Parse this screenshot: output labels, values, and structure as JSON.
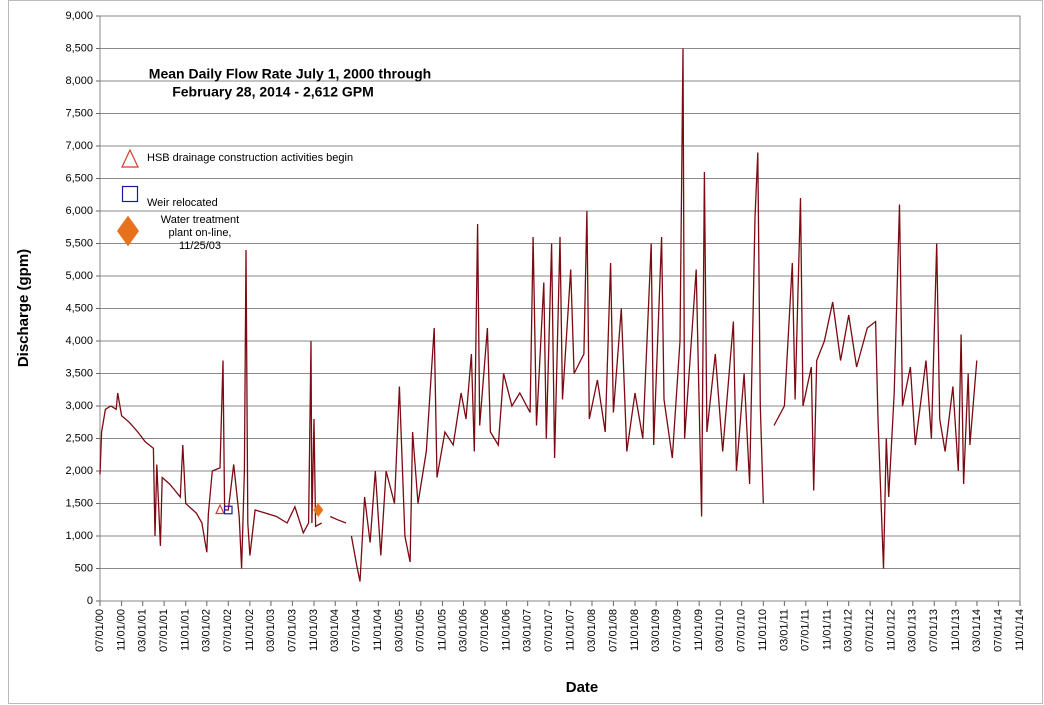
{
  "chart_data": {
    "type": "line",
    "title_lines": [
      "Mean Daily Flow Rate July 1, 2000 through",
      "February 28, 2014 - 2,612 GPM"
    ],
    "title_color": "#7b1c24",
    "x_label": "Date",
    "y_label": "Discharge (gpm)",
    "color": "#7b0a12",
    "xlim": [
      "2000-07-01",
      "2014-11-01"
    ],
    "ylim": [
      0,
      9000
    ],
    "yticks": [
      0,
      500,
      {
        "value": 1000,
        "label": "1,000"
      },
      {
        "value": 1500,
        "label": "1,500"
      },
      {
        "value": 2000,
        "label": "2,000"
      },
      {
        "value": 2500,
        "label": "2,500"
      },
      {
        "value": 3000,
        "label": "3,000"
      },
      {
        "value": 3500,
        "label": "3,500"
      },
      {
        "value": 4000,
        "label": "4,000"
      },
      {
        "value": 4500,
        "label": "4,500"
      },
      {
        "value": 5000,
        "label": "5,000"
      },
      {
        "value": 5500,
        "label": "5,500"
      },
      {
        "value": 6000,
        "label": "6,000"
      },
      {
        "value": 6500,
        "label": "6,500"
      },
      {
        "value": 7000,
        "label": "7,000"
      },
      {
        "value": 7500,
        "label": "7,500"
      },
      {
        "value": 8000,
        "label": "8,000"
      },
      {
        "value": 8500,
        "label": "8,500"
      },
      {
        "value": 9000,
        "label": "9,000"
      }
    ],
    "xticks": [
      {
        "value": "2000-07-01",
        "label": "07/01/00"
      },
      {
        "value": "2000-11-01",
        "label": "11/01/00"
      },
      {
        "value": "2001-03-01",
        "label": "03/01/01"
      },
      {
        "value": "2001-07-01",
        "label": "07/01/01"
      },
      {
        "value": "2001-11-01",
        "label": "11/01/01"
      },
      {
        "value": "2002-03-01",
        "label": "03/01/02"
      },
      {
        "value": "2002-07-01",
        "label": "07/01/02"
      },
      {
        "value": "2002-11-01",
        "label": "11/01/02"
      },
      {
        "value": "2003-03-01",
        "label": "03/01/03"
      },
      {
        "value": "2003-07-01",
        "label": "07/01/03"
      },
      {
        "value": "2003-11-01",
        "label": "11/01/03"
      },
      {
        "value": "2004-03-01",
        "label": "03/01/04"
      },
      {
        "value": "2004-07-01",
        "label": "07/01/04"
      },
      {
        "value": "2004-11-01",
        "label": "11/01/04"
      },
      {
        "value": "2005-03-01",
        "label": "03/01/05"
      },
      {
        "value": "2005-07-01",
        "label": "07/01/05"
      },
      {
        "value": "2005-11-01",
        "label": "11/01/05"
      },
      {
        "value": "2006-03-01",
        "label": "03/01/06"
      },
      {
        "value": "2006-07-01",
        "label": "07/01/06"
      },
      {
        "value": "2006-11-01",
        "label": "11/01/06"
      },
      {
        "value": "2007-03-01",
        "label": "03/01/07"
      },
      {
        "value": "2007-07-01",
        "label": "07/01/07"
      },
      {
        "value": "2007-11-01",
        "label": "11/01/07"
      },
      {
        "value": "2008-03-01",
        "label": "03/01/08"
      },
      {
        "value": "2008-07-01",
        "label": "07/01/08"
      },
      {
        "value": "2008-11-01",
        "label": "11/01/08"
      },
      {
        "value": "2009-03-01",
        "label": "03/01/09"
      },
      {
        "value": "2009-07-01",
        "label": "07/01/09"
      },
      {
        "value": "2009-11-01",
        "label": "11/01/09"
      },
      {
        "value": "2010-03-01",
        "label": "03/01/10"
      },
      {
        "value": "2010-07-01",
        "label": "07/01/10"
      },
      {
        "value": "2010-11-01",
        "label": "11/01/10"
      },
      {
        "value": "2011-03-01",
        "label": "03/01/11"
      },
      {
        "value": "2011-07-01",
        "label": "07/01/11"
      },
      {
        "value": "2011-11-01",
        "label": "11/01/11"
      },
      {
        "value": "2012-03-01",
        "label": "03/01/12"
      },
      {
        "value": "2012-07-01",
        "label": "07/01/12"
      },
      {
        "value": "2012-11-01",
        "label": "11/01/12"
      },
      {
        "value": "2013-03-01",
        "label": "03/01/13"
      },
      {
        "value": "2013-07-01",
        "label": "07/01/13"
      },
      {
        "value": "2013-11-01",
        "label": "11/01/13"
      },
      {
        "value": "2014-03-01",
        "label": "03/01/14"
      },
      {
        "value": "2014-07-01",
        "label": "07/01/14"
      },
      {
        "value": "2014-11-01",
        "label": "11/01/14"
      }
    ],
    "grid": true,
    "x": [
      "2000-07-01",
      "2000-07-10",
      "2000-08-01",
      "2000-09-01",
      "2000-10-01",
      "2000-10-10",
      "2000-11-01",
      "2000-12-15",
      "2001-02-01",
      "2001-03-15",
      "2001-05-01",
      "2001-05-10",
      "2001-05-20",
      "2001-06-10",
      "2001-06-20",
      "2001-08-01",
      "2001-09-01",
      "2001-10-01",
      "2001-10-15",
      "2001-11-01",
      "2002-01-01",
      "2002-02-01",
      "2002-03-01",
      "2002-03-10",
      "2002-04-01",
      "2002-05-15",
      "2002-06-01",
      "2002-06-10",
      "2002-07-01",
      "2002-08-01",
      "2002-09-01",
      "2002-09-15",
      "2002-10-01",
      "2002-10-10",
      "2002-10-20",
      "2002-11-01",
      "2002-12-01",
      "2003-02-01",
      "2003-04-01",
      "2003-06-01",
      "2003-07-15",
      "2003-09-01",
      "2003-10-01",
      "2003-10-15",
      "2003-10-20",
      "2003-11-01",
      "2003-11-10",
      "2003-12-15",
      "2004-01-10",
      "2004-02-01",
      "2004-03-15",
      "2004-05-01",
      "2004-05-10",
      "2004-06-01",
      "2004-07-01",
      "2004-07-20",
      "2004-08-15",
      "2004-09-15",
      "2004-10-15",
      "2004-11-15",
      "2004-12-15",
      "2005-02-01",
      "2005-03-01",
      "2005-04-01",
      "2005-05-01",
      "2005-05-15",
      "2005-06-15",
      "2005-08-01",
      "2005-09-15",
      "2005-10-01",
      "2005-11-15",
      "2006-01-01",
      "2006-02-15",
      "2006-03-15",
      "2006-04-15",
      "2006-05-01",
      "2006-05-20",
      "2006-06-01",
      "2006-07-15",
      "2006-08-01",
      "2006-09-15",
      "2006-10-15",
      "2006-12-01",
      "2007-01-15",
      "2007-03-15",
      "2007-04-01",
      "2007-04-20",
      "2007-06-01",
      "2007-06-15",
      "2007-07-15",
      "2007-08-01",
      "2007-09-01",
      "2007-09-15",
      "2007-11-01",
      "2007-11-20",
      "2008-01-15",
      "2008-02-01",
      "2008-02-15",
      "2008-04-01",
      "2008-05-15",
      "2008-06-15",
      "2008-07-01",
      "2008-08-15",
      "2008-09-15",
      "2008-11-01",
      "2008-12-15",
      "2009-02-01",
      "2009-02-15",
      "2009-04-01",
      "2009-04-15",
      "2009-06-01",
      "2009-07-15",
      "2009-08-01",
      "2009-08-10",
      "2009-09-15",
      "2009-10-15",
      "2009-11-15",
      "2009-12-01",
      "2009-12-15",
      "2010-02-01",
      "2010-03-15",
      "2010-05-15",
      "2010-06-01",
      "2010-07-15",
      "2010-08-15",
      "2010-09-15",
      "2010-10-01",
      "2010-10-15",
      "2010-11-01",
      "2010-11-10",
      "2011-01-01",
      "2011-03-01",
      "2011-04-15",
      "2011-05-01",
      "2011-06-01",
      "2011-06-15",
      "2011-08-01",
      "2011-08-15",
      "2011-09-01",
      "2011-10-15",
      "2011-12-01",
      "2012-01-15",
      "2012-03-01",
      "2012-04-15",
      "2012-06-15",
      "2012-08-01",
      "2012-08-15",
      "2012-09-15",
      "2012-10-01",
      "2012-10-15",
      "2012-11-15",
      "2012-12-15",
      "2013-01-01",
      "2013-02-15",
      "2013-03-15",
      "2013-05-15",
      "2013-06-15",
      "2013-07-15",
      "2013-08-01",
      "2013-09-01",
      "2013-10-15",
      "2013-11-15",
      "2013-12-01",
      "2013-12-15",
      "2014-01-10",
      "2014-01-20",
      "2014-02-28"
    ],
    "values": [
      1950,
      2600,
      2950,
      3000,
      2950,
      3200,
      2850,
      2750,
      2600,
      2450,
      2350,
      1000,
      2100,
      850,
      1900,
      1800,
      1700,
      1600,
      2400,
      1500,
      1350,
      1200,
      750,
      1350,
      2000,
      2050,
      3700,
      1400,
      1400,
      2100,
      1300,
      500,
      2000,
      5400,
      1200,
      700,
      1400,
      1350,
      1300,
      1200,
      1450,
      1050,
      1200,
      4000,
      1200,
      2800,
      1150,
      1200,
      null,
      1300,
      1250,
      1200,
      null,
      1000,
      550,
      300,
      1600,
      900,
      2000,
      700,
      2000,
      1500,
      3300,
      1000,
      600,
      2600,
      1500,
      2300,
      4200,
      1900,
      2600,
      2400,
      3200,
      2800,
      3800,
      2300,
      5800,
      2700,
      4200,
      2600,
      2400,
      3500,
      3000,
      3200,
      2900,
      5600,
      2700,
      4900,
      2500,
      5500,
      2200,
      5600,
      3100,
      5100,
      3500,
      3800,
      6000,
      2800,
      3400,
      2600,
      5200,
      2900,
      4500,
      2300,
      3200,
      2500,
      5500,
      2400,
      5600,
      3100,
      2200,
      4000,
      8500,
      2500,
      3900,
      5100,
      1300,
      6600,
      2600,
      3800,
      2300,
      4300,
      2000,
      3500,
      1800,
      5900,
      6900,
      3000,
      1500,
      null,
      2700,
      3000,
      5200,
      3100,
      6200,
      3000,
      3600,
      1700,
      3700,
      4000,
      4600,
      3700,
      4400,
      3600,
      4200,
      4300,
      2800,
      500,
      2500,
      1600,
      3200,
      6100,
      3000,
      3600,
      2400,
      3700,
      2500,
      5500,
      2800,
      2300,
      3300,
      2000,
      4100,
      1800,
      3500,
      2400,
      3700
    ],
    "events": [
      {
        "label_lines": [
          "HSB drainage construction activities begin"
        ],
        "shape": "triangle",
        "color": "#d23a2a",
        "date": "2002-05-15",
        "value": 1400
      },
      {
        "label_lines": [
          "Weir relocated"
        ],
        "shape": "square",
        "color": "#1a1aa6",
        "date": "2002-07-01",
        "value": 1400
      },
      {
        "label_lines": [
          "Water treatment",
          "plant on-line,",
          "11/25/03"
        ],
        "shape": "diamond",
        "color": "#e8711c",
        "date": "2003-11-25",
        "value": 1400
      }
    ]
  }
}
